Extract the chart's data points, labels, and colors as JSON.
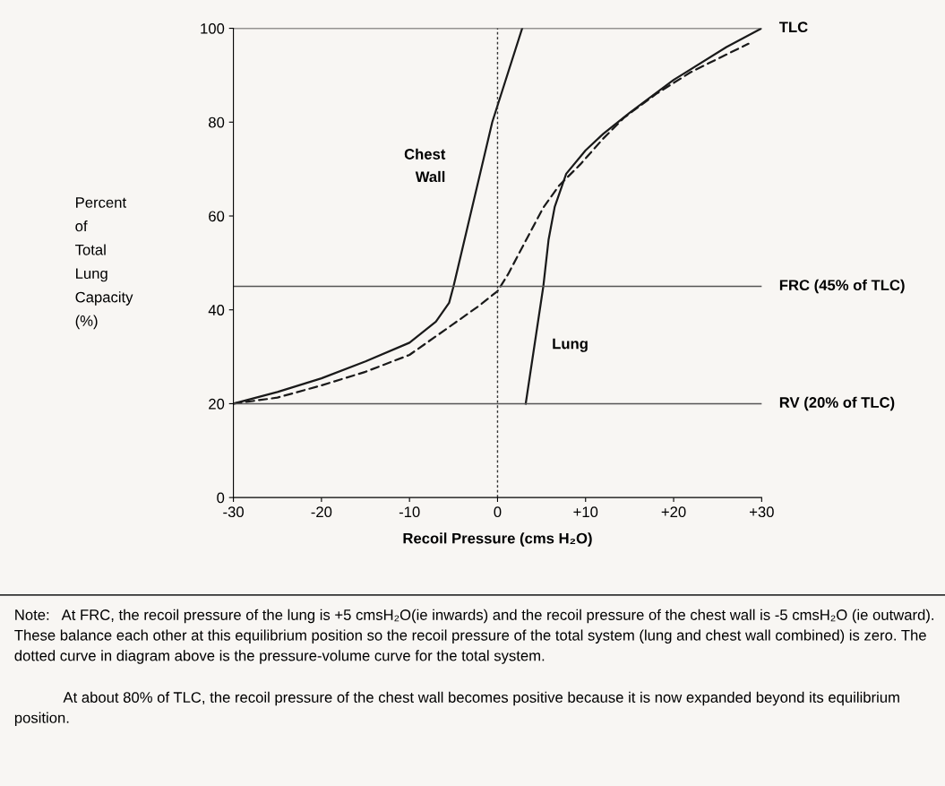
{
  "chart_data": {
    "type": "line",
    "xlabel": "Recoil Pressure (cms H₂O)",
    "ylabel": "Percent\nof\nTotal\nLung\nCapacity\n(%)",
    "xlim": [
      -30,
      30
    ],
    "ylim": [
      0,
      100
    ],
    "xticks": [
      {
        "value": -30,
        "label": "-30"
      },
      {
        "value": -20,
        "label": "-20"
      },
      {
        "value": -10,
        "label": "-10"
      },
      {
        "value": 0,
        "label": "0"
      },
      {
        "value": 10,
        "label": "+10"
      },
      {
        "value": 20,
        "label": "+20"
      },
      {
        "value": 30,
        "label": "+30"
      }
    ],
    "yticks": [
      0,
      20,
      40,
      60,
      80,
      100
    ],
    "grid": false,
    "marker": "none",
    "series": [
      {
        "name": "Chest\nWall",
        "color": "#1a1a1a",
        "line_style": "solid",
        "x": [
          -30,
          -25,
          -20,
          -15,
          -10,
          -7,
          -5.5,
          -5,
          -0.6,
          2.8
        ],
        "values": [
          20,
          22.5,
          25.4,
          29,
          33,
          37.5,
          41.5,
          45,
          80,
          100
        ]
      },
      {
        "name": "Lung",
        "color": "#1a1a1a",
        "line_style": "solid",
        "x": [
          3.2,
          5.2,
          5.8,
          6.5,
          7.8,
          10,
          12,
          15,
          20,
          26,
          30
        ],
        "values": [
          20,
          45,
          55,
          62,
          69,
          74,
          77.5,
          82,
          89,
          96,
          100
        ]
      },
      {
        "color": "#1a1a1a",
        "line_style": "dashed",
        "x": [
          -30,
          -25,
          -20,
          -15,
          -10,
          -5,
          -2,
          0,
          1.2,
          3,
          5.2,
          7,
          9.4,
          12,
          14.4,
          18,
          21.9,
          25,
          28.5
        ],
        "values": [
          20,
          21.3,
          23.9,
          26.8,
          30.4,
          37,
          41,
          44,
          47.6,
          54,
          61.8,
          66.5,
          71,
          76.5,
          81,
          86,
          90.6,
          93.5,
          96.7
        ]
      }
    ],
    "ref_lines": [
      {
        "axis": "y",
        "value": 100,
        "label": "TLC",
        "color": "#333333",
        "line_style": "solid"
      },
      {
        "axis": "y",
        "value": 45,
        "label": "FRC (45% of TLC)",
        "color": "#555555",
        "line_style": "solid"
      },
      {
        "axis": "y",
        "value": 20,
        "label": "RV (20% of TLC)",
        "color": "#555555",
        "line_style": "solid"
      },
      {
        "axis": "x",
        "value": 0,
        "color": "#333333",
        "line_style": "dotted"
      }
    ],
    "annotations": [
      "Note:   At FRC, the recoil pressure of the lung is +5 cmsH₂O(ie inwards) and the recoil pressure of the chest wall is -5 cmsH₂O (ie outward). These balance each other at this equilibrium position so the recoil pressure of the total system (lung and chest wall combined) is zero. The dotted curve in diagram above is the pressure-volume curve for the total system.",
      "            At about 80% of TLC, the recoil pressure of the chest wall becomes positive because it is now expanded beyond its equilibrium position."
    ]
  }
}
